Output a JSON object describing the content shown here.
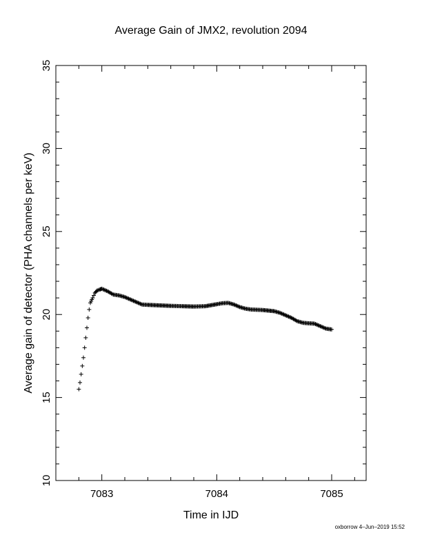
{
  "chart_data": {
    "type": "scatter",
    "title": "Average Gain of JMX2, revolution 2094",
    "xlabel": "Time in IJD",
    "ylabel": "Average gain of detector (PHA channels per keV)",
    "xlim": [
      7082.6,
      7085.3
    ],
    "ylim": [
      10,
      35
    ],
    "xticks": [
      7083,
      7084,
      7085
    ],
    "yticks": [
      10,
      15,
      20,
      25,
      30,
      35
    ],
    "marker": "+",
    "series": [
      {
        "values": [
          [
            7082.8,
            15.5
          ],
          [
            7082.81,
            15.9
          ],
          [
            7082.82,
            16.4
          ],
          [
            7082.83,
            16.9
          ],
          [
            7082.84,
            17.4
          ],
          [
            7082.85,
            18.0
          ],
          [
            7082.86,
            18.6
          ],
          [
            7082.87,
            19.2
          ],
          [
            7082.88,
            19.8
          ],
          [
            7082.89,
            20.3
          ],
          [
            7082.9,
            20.7
          ],
          [
            7082.92,
            21.0
          ],
          [
            7082.94,
            21.3
          ],
          [
            7082.96,
            21.45
          ],
          [
            7082.98,
            21.5
          ],
          [
            7083.0,
            21.55
          ],
          [
            7083.05,
            21.4
          ],
          [
            7083.1,
            21.2
          ],
          [
            7083.15,
            21.15
          ],
          [
            7083.2,
            21.05
          ],
          [
            7083.25,
            20.9
          ],
          [
            7083.3,
            20.75
          ],
          [
            7083.35,
            20.6
          ],
          [
            7083.4,
            20.58
          ],
          [
            7083.5,
            20.55
          ],
          [
            7083.6,
            20.52
          ],
          [
            7083.7,
            20.5
          ],
          [
            7083.8,
            20.48
          ],
          [
            7083.9,
            20.5
          ],
          [
            7084.0,
            20.62
          ],
          [
            7084.05,
            20.68
          ],
          [
            7084.1,
            20.7
          ],
          [
            7084.15,
            20.6
          ],
          [
            7084.2,
            20.45
          ],
          [
            7084.25,
            20.35
          ],
          [
            7084.3,
            20.3
          ],
          [
            7084.4,
            20.27
          ],
          [
            7084.5,
            20.2
          ],
          [
            7084.55,
            20.1
          ],
          [
            7084.6,
            19.95
          ],
          [
            7084.65,
            19.8
          ],
          [
            7084.7,
            19.6
          ],
          [
            7084.75,
            19.5
          ],
          [
            7084.8,
            19.47
          ],
          [
            7084.85,
            19.45
          ],
          [
            7084.9,
            19.3
          ],
          [
            7084.95,
            19.15
          ],
          [
            7085.0,
            19.1
          ]
        ]
      }
    ]
  },
  "footer": "oxborrow  4–Jun–2019 15:52"
}
